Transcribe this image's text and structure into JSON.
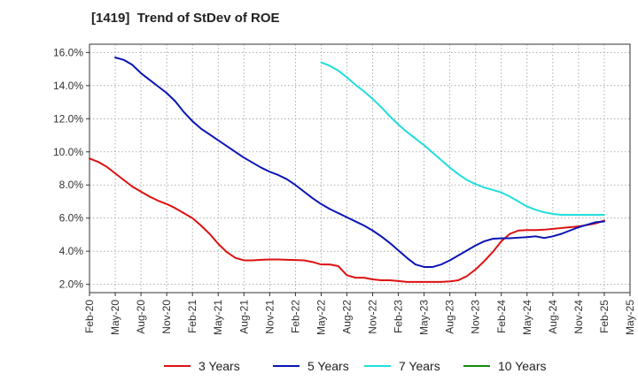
{
  "chart_data": {
    "type": "line",
    "title": "[1419]  Trend of StDev of ROE",
    "xlabel": "",
    "ylabel": "",
    "ylim": [
      1.5,
      16.5
    ],
    "grid": true,
    "legend_position": "bottom",
    "x_ticks": [
      "Feb-20",
      "May-20",
      "Aug-20",
      "Nov-20",
      "Feb-21",
      "May-21",
      "Aug-21",
      "Nov-21",
      "Feb-22",
      "May-22",
      "Aug-22",
      "Nov-22",
      "Feb-23",
      "May-23",
      "Aug-23",
      "Nov-23",
      "Feb-24",
      "May-24",
      "Aug-24",
      "Nov-24",
      "Feb-25",
      "May-25"
    ],
    "y_ticks": [
      2.0,
      4.0,
      6.0,
      8.0,
      10.0,
      12.0,
      14.0,
      16.0
    ],
    "y_tick_labels": [
      "2.0%",
      "4.0%",
      "6.0%",
      "8.0%",
      "10.0%",
      "12.0%",
      "14.0%",
      "16.0%"
    ],
    "series": [
      {
        "name": "3 Years",
        "color": "#dd1111",
        "x": [
          "Feb-20",
          "Mar-20",
          "Apr-20",
          "May-20",
          "Jun-20",
          "Jul-20",
          "Aug-20",
          "Sep-20",
          "Oct-20",
          "Nov-20",
          "Dec-20",
          "Jan-21",
          "Feb-21",
          "Mar-21",
          "Apr-21",
          "May-21",
          "Jun-21",
          "Jul-21",
          "Aug-21",
          "Sep-21",
          "Oct-21",
          "Nov-21",
          "Dec-21",
          "Jan-22",
          "Feb-22",
          "Mar-22",
          "Apr-22",
          "May-22",
          "Jun-22",
          "Jul-22",
          "Aug-22",
          "Sep-22",
          "Oct-22",
          "Nov-22",
          "Dec-22",
          "Jan-23",
          "Feb-23",
          "Mar-23",
          "Apr-23",
          "May-23",
          "Jun-23",
          "Jul-23",
          "Aug-23",
          "Sep-23",
          "Oct-23",
          "Nov-23",
          "Dec-23",
          "Jan-24",
          "Feb-24",
          "Mar-24",
          "Apr-24",
          "May-24",
          "Jun-24",
          "Jul-24",
          "Aug-24",
          "Sep-24",
          "Oct-24",
          "Nov-24",
          "Dec-24",
          "Jan-25",
          "Feb-25"
        ],
        "values": [
          9.6,
          9.4,
          9.1,
          8.7,
          8.3,
          7.9,
          7.6,
          7.3,
          7.05,
          6.85,
          6.6,
          6.3,
          6.0,
          5.55,
          5.05,
          4.45,
          3.95,
          3.6,
          3.45,
          3.45,
          3.48,
          3.5,
          3.5,
          3.48,
          3.47,
          3.45,
          3.35,
          3.2,
          3.2,
          3.1,
          2.55,
          2.4,
          2.4,
          2.3,
          2.25,
          2.25,
          2.2,
          2.15,
          2.15,
          2.15,
          2.15,
          2.15,
          2.18,
          2.25,
          2.5,
          2.9,
          3.4,
          3.95,
          4.6,
          5.05,
          5.25,
          5.28,
          5.28,
          5.3,
          5.35,
          5.4,
          5.45,
          5.5,
          5.58,
          5.68,
          5.85
        ]
      },
      {
        "name": "5 Years",
        "color": "#0a14b4",
        "x": [
          "May-20",
          "Jun-20",
          "Jul-20",
          "Aug-20",
          "Sep-20",
          "Oct-20",
          "Nov-20",
          "Dec-20",
          "Jan-21",
          "Feb-21",
          "Mar-21",
          "Apr-21",
          "May-21",
          "Jun-21",
          "Jul-21",
          "Aug-21",
          "Sep-21",
          "Oct-21",
          "Nov-21",
          "Dec-21",
          "Jan-22",
          "Feb-22",
          "Mar-22",
          "Apr-22",
          "May-22",
          "Jun-22",
          "Jul-22",
          "Aug-22",
          "Sep-22",
          "Oct-22",
          "Nov-22",
          "Dec-22",
          "Jan-23",
          "Feb-23",
          "Mar-23",
          "Apr-23",
          "May-23",
          "Jun-23",
          "Jul-23",
          "Aug-23",
          "Sep-23",
          "Oct-23",
          "Nov-23",
          "Dec-23",
          "Jan-24",
          "Feb-24",
          "Mar-24",
          "Apr-24",
          "May-24",
          "Jun-24",
          "Jul-24",
          "Aug-24",
          "Sep-24",
          "Oct-24",
          "Nov-24",
          "Dec-24",
          "Jan-25",
          "Feb-25"
        ],
        "values": [
          15.7,
          15.55,
          15.25,
          14.75,
          14.35,
          13.95,
          13.55,
          13.05,
          12.4,
          11.85,
          11.4,
          11.05,
          10.7,
          10.35,
          10.0,
          9.65,
          9.35,
          9.05,
          8.8,
          8.6,
          8.35,
          8.0,
          7.6,
          7.2,
          6.85,
          6.55,
          6.3,
          6.05,
          5.8,
          5.55,
          5.25,
          4.9,
          4.5,
          4.05,
          3.6,
          3.2,
          3.05,
          3.05,
          3.2,
          3.45,
          3.75,
          4.05,
          4.35,
          4.6,
          4.75,
          4.78,
          4.78,
          4.82,
          4.85,
          4.9,
          4.8,
          4.9,
          5.05,
          5.25,
          5.45,
          5.6,
          5.75,
          5.8
        ]
      },
      {
        "name": "7 Years",
        "color": "#22dddd",
        "x": [
          "May-22",
          "Jun-22",
          "Jul-22",
          "Aug-22",
          "Sep-22",
          "Oct-22",
          "Nov-22",
          "Dec-22",
          "Jan-23",
          "Feb-23",
          "Mar-23",
          "Apr-23",
          "May-23",
          "Jun-23",
          "Jul-23",
          "Aug-23",
          "Sep-23",
          "Oct-23",
          "Nov-23",
          "Dec-23",
          "Jan-24",
          "Feb-24",
          "Mar-24",
          "Apr-24",
          "May-24",
          "Jun-24",
          "Jul-24",
          "Aug-24",
          "Sep-24",
          "Oct-24",
          "Nov-24",
          "Dec-24",
          "Jan-25",
          "Feb-25"
        ],
        "values": [
          15.4,
          15.2,
          14.9,
          14.5,
          14.05,
          13.65,
          13.2,
          12.7,
          12.15,
          11.65,
          11.2,
          10.8,
          10.4,
          9.95,
          9.5,
          9.05,
          8.65,
          8.3,
          8.05,
          7.85,
          7.7,
          7.55,
          7.3,
          7.0,
          6.7,
          6.5,
          6.35,
          6.25,
          6.2,
          6.2,
          6.2,
          6.2,
          6.2,
          6.2
        ]
      },
      {
        "name": "10 Years",
        "color": "#128a12",
        "x": [],
        "values": []
      }
    ]
  }
}
